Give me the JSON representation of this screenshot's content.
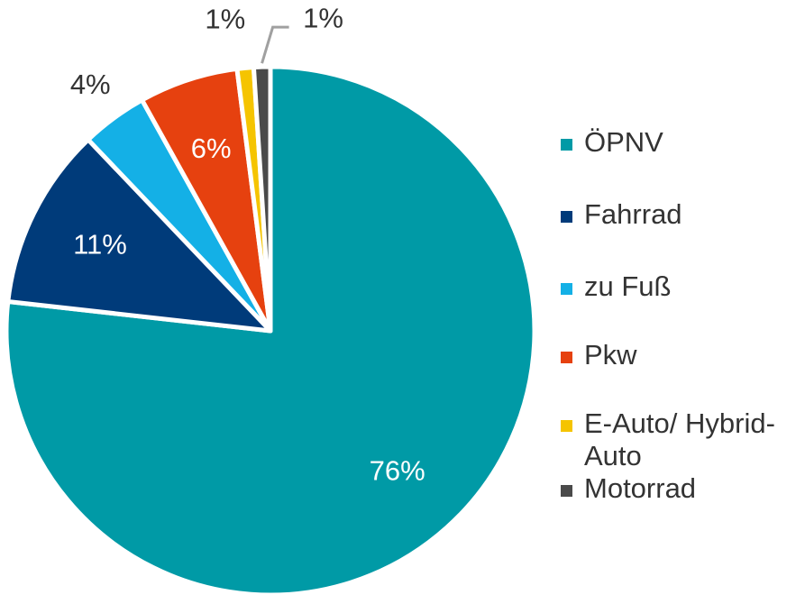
{
  "chart_data": {
    "type": "pie",
    "categories": [
      "ÖPNV",
      "Fahrrad",
      "zu Fuß",
      "Pkw",
      "E-Auto/ Hybrid-Auto",
      "Motorrad"
    ],
    "values": [
      76,
      11,
      4,
      6,
      1,
      1
    ],
    "value_labels": [
      "76%",
      "11%",
      "4%",
      "6%",
      "1%",
      "1%"
    ],
    "start": "12 o'clock",
    "direction": "clockwise",
    "legend_placement": "right",
    "colors": [
      "#009aa6",
      "#003b7a",
      "#14b0e6",
      "#e6410f",
      "#f5c400",
      "#4a4a4a"
    ]
  },
  "legend": {
    "items": [
      {
        "label": "ÖPNV",
        "color": "#009aa6"
      },
      {
        "label": "Fahrrad",
        "color": "#003b7a"
      },
      {
        "label": "zu Fuß",
        "color": "#14b0e6"
      },
      {
        "label": "Pkw",
        "color": "#e6410f"
      },
      {
        "label": "E-Auto/ Hybrid-Auto",
        "color": "#f5c400"
      },
      {
        "label": "Motorrad",
        "color": "#4a4a4a"
      }
    ]
  }
}
